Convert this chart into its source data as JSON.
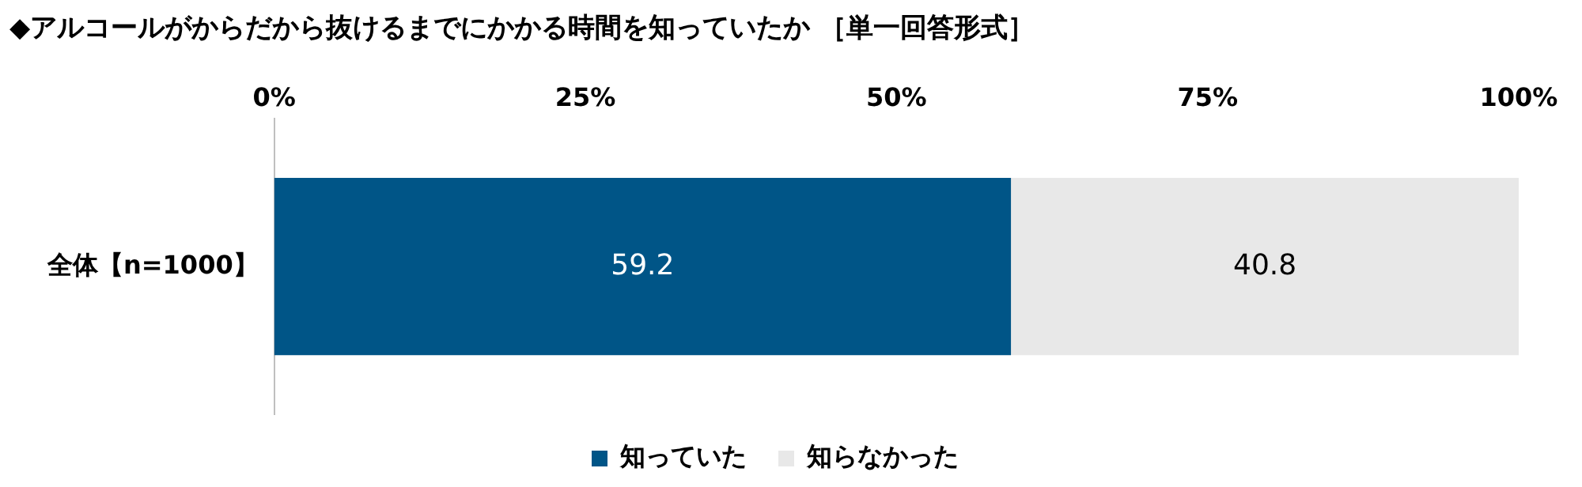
{
  "chart_data": {
    "type": "bar",
    "orientation": "horizontal",
    "stacked": true,
    "title": "◆アルコールがからだから抜けるまでにかかる時間を知っていたか ［単一回答形式］",
    "categories": [
      "全体【n=1000】"
    ],
    "series": [
      {
        "name": "知っていた",
        "color": "#005587",
        "values": [
          59.2
        ]
      },
      {
        "name": "知らなかった",
        "color": "#e8e8e8",
        "values": [
          40.8
        ]
      }
    ],
    "xlim": [
      0,
      100
    ],
    "xticks": [
      {
        "value": 0,
        "label": "0%"
      },
      {
        "value": 25,
        "label": "25%"
      },
      {
        "value": 50,
        "label": "50%"
      },
      {
        "value": 75,
        "label": "75%"
      },
      {
        "value": 100,
        "label": "100%"
      }
    ],
    "grid": false,
    "legend": "bottom",
    "data_labels": true
  }
}
